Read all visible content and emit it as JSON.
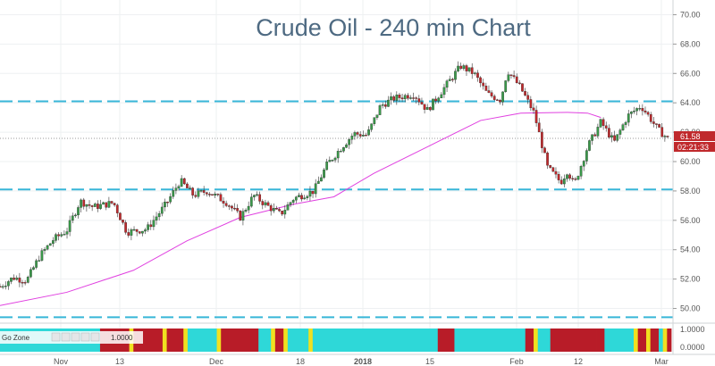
{
  "chart_data": {
    "type": "candlestick",
    "title": "Crude Oil - 240 min Chart",
    "ylim": [
      49,
      71
    ],
    "y_ticks": [
      "70.00",
      "68.00",
      "66.00",
      "64.00",
      "62.00",
      "60.00",
      "58.00",
      "56.00",
      "54.00",
      "52.00",
      "50.00"
    ],
    "x_ticks": [
      "Nov",
      "13",
      "Dec",
      "18",
      "2018",
      "15",
      "Feb",
      "12",
      "Mar"
    ],
    "last_price": "61.58",
    "countdown": "02:21:33",
    "horizontal_levels": [
      64.1,
      58.1,
      49.4
    ],
    "moving_average": {
      "color": "#e040e0",
      "points": [
        [
          0,
          50.2
        ],
        [
          0.1,
          51.1
        ],
        [
          0.2,
          52.6
        ],
        [
          0.28,
          54.6
        ],
        [
          0.36,
          56.2
        ],
        [
          0.44,
          57.1
        ],
        [
          0.5,
          57.6
        ],
        [
          0.56,
          59.2
        ],
        [
          0.64,
          61.0
        ],
        [
          0.72,
          62.8
        ],
        [
          0.78,
          63.3
        ],
        [
          0.85,
          63.35
        ],
        [
          0.88,
          63.3
        ],
        [
          0.9,
          63.0
        ]
      ]
    },
    "candles_path": [
      [
        0,
        51.5
      ],
      [
        0.02,
        52.1
      ],
      [
        0.04,
        51.9
      ],
      [
        0.06,
        53.6
      ],
      [
        0.08,
        54.7
      ],
      [
        0.1,
        55.3
      ],
      [
        0.12,
        57.3
      ],
      [
        0.14,
        56.9
      ],
      [
        0.17,
        57.2
      ],
      [
        0.19,
        55.2
      ],
      [
        0.22,
        55.4
      ],
      [
        0.25,
        57.2
      ],
      [
        0.27,
        58.7
      ],
      [
        0.29,
        57.7
      ],
      [
        0.31,
        58.0
      ],
      [
        0.34,
        57.2
      ],
      [
        0.36,
        56.2
      ],
      [
        0.38,
        57.7
      ],
      [
        0.4,
        57.0
      ],
      [
        0.42,
        56.4
      ],
      [
        0.44,
        57.5
      ],
      [
        0.47,
        58.0
      ],
      [
        0.49,
        59.8
      ],
      [
        0.51,
        60.9
      ],
      [
        0.53,
        61.9
      ],
      [
        0.55,
        61.8
      ],
      [
        0.57,
        63.8
      ],
      [
        0.59,
        64.3
      ],
      [
        0.62,
        64.6
      ],
      [
        0.64,
        63.5
      ],
      [
        0.66,
        64.7
      ],
      [
        0.68,
        65.9
      ],
      [
        0.69,
        66.5
      ],
      [
        0.71,
        66.0
      ],
      [
        0.73,
        64.6
      ],
      [
        0.75,
        64.2
      ],
      [
        0.76,
        66.2
      ],
      [
        0.78,
        65.0
      ],
      [
        0.8,
        63.3
      ],
      [
        0.82,
        59.6
      ],
      [
        0.84,
        58.6
      ],
      [
        0.85,
        59.4
      ],
      [
        0.86,
        58.4
      ],
      [
        0.88,
        61.0
      ],
      [
        0.9,
        62.7
      ],
      [
        0.92,
        61.3
      ],
      [
        0.94,
        63.1
      ],
      [
        0.96,
        63.8
      ],
      [
        0.97,
        63.2
      ],
      [
        0.985,
        62.2
      ],
      [
        1.0,
        61.58
      ]
    ],
    "colors": {
      "level_line": "#38b6d8",
      "up": "#3a9a4a",
      "down": "#c0292c",
      "wick": "#333333"
    }
  },
  "indicator": {
    "label": "Go Zone",
    "value": "1.0000",
    "scale": [
      "1.0000",
      "0.0000"
    ],
    "colors": {
      "cyan": "#2ed8d8",
      "red": "#b81c28",
      "yellow": "#f0e020",
      "blue": "#3050c0"
    },
    "pattern": [
      "cyan",
      "cyan",
      "cyan",
      "cyan",
      "cyan",
      "cyan",
      "cyan",
      "cyan",
      "cyan",
      "cyan",
      "cyan",
      "cyan",
      "cyan",
      "cyan",
      "cyan",
      "cyan",
      "cyan",
      "cyan",
      "cyan",
      "cyan",
      "cyan",
      "cyan",
      "cyan",
      "cyan",
      "red",
      "red",
      "red",
      "red",
      "red",
      "red",
      "red",
      "yellow",
      "red",
      "red",
      "red",
      "red",
      "red",
      "red",
      "red",
      "yellow",
      "red",
      "red",
      "red",
      "red",
      "yellow",
      "cyan",
      "cyan",
      "cyan",
      "cyan",
      "cyan",
      "cyan",
      "cyan",
      "yellow",
      "red",
      "red",
      "red",
      "red",
      "red",
      "red",
      "red",
      "red",
      "red",
      "cyan",
      "cyan",
      "cyan",
      "yellow",
      "red",
      "red",
      "yellow",
      "cyan",
      "cyan",
      "cyan",
      "cyan",
      "cyan",
      "yellow",
      "cyan",
      "cyan",
      "cyan",
      "cyan",
      "cyan",
      "cyan",
      "cyan",
      "cyan",
      "cyan",
      "cyan",
      "cyan",
      "cyan",
      "cyan",
      "cyan",
      "cyan",
      "cyan",
      "cyan",
      "cyan",
      "cyan",
      "cyan",
      "cyan",
      "cyan",
      "cyan",
      "cyan",
      "cyan",
      "cyan",
      "cyan",
      "cyan",
      "cyan",
      "cyan",
      "red",
      "red",
      "red",
      "red",
      "cyan",
      "cyan",
      "cyan",
      "cyan",
      "cyan",
      "cyan",
      "cyan",
      "cyan",
      "cyan",
      "cyan",
      "cyan",
      "cyan",
      "cyan",
      "cyan",
      "cyan",
      "cyan",
      "cyan",
      "red",
      "red",
      "yellow",
      "cyan",
      "cyan",
      "cyan",
      "red",
      "red",
      "red",
      "red",
      "red",
      "red",
      "red",
      "red",
      "red",
      "red",
      "red",
      "red",
      "red",
      "cyan",
      "cyan",
      "cyan",
      "cyan",
      "cyan",
      "cyan",
      "cyan",
      "yellow",
      "red",
      "red",
      "yellow",
      "red",
      "red",
      "cyan",
      "yellow",
      "red"
    ]
  }
}
